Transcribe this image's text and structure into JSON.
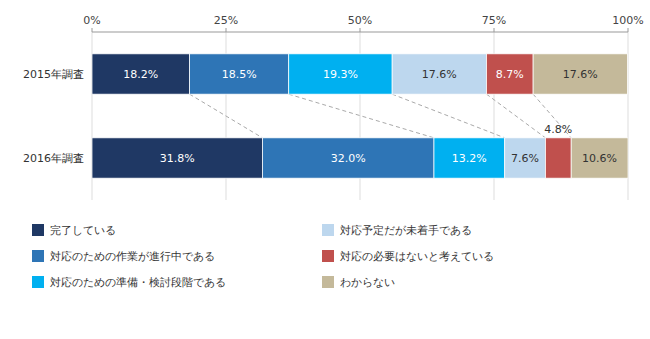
{
  "chart_data": {
    "type": "bar",
    "orientation": "horizontal",
    "stacked": true,
    "data_labels": true,
    "grid": true,
    "legend": "bottom",
    "categories": [
      "2015年調査",
      "2016年調査"
    ],
    "series": [
      {
        "name": "完了している",
        "color": "#1f3864",
        "values": [
          18.2,
          31.8
        ],
        "value_labels": [
          "18.2%",
          "31.8%"
        ]
      },
      {
        "name": "対応のための作業が進行中である",
        "color": "#2e75b6",
        "values": [
          18.5,
          32.0
        ],
        "value_labels": [
          "18.5%",
          "32.0%"
        ]
      },
      {
        "name": "対応のための準備・検討段階である",
        "color": "#00b0f0",
        "values": [
          19.3,
          13.2
        ],
        "value_labels": [
          "19.3%",
          "13.2%"
        ]
      },
      {
        "name": "対応予定だが未着手である",
        "color": "#bdd7ee",
        "values": [
          17.6,
          7.6
        ],
        "value_labels": [
          "17.6%",
          "7.6%"
        ]
      },
      {
        "name": "対応の必要はないと考えている",
        "color": "#c0504d",
        "values": [
          8.7,
          4.8
        ],
        "value_labels": [
          "8.7%",
          "4.8%"
        ]
      },
      {
        "name": "わからない",
        "color": "#c4b99a",
        "values": [
          17.6,
          10.6
        ],
        "value_labels": [
          "17.6%",
          "10.6%"
        ]
      }
    ],
    "xlim": [
      0,
      100
    ],
    "xticks": [
      {
        "value": 0,
        "label": "0%"
      },
      {
        "value": 25,
        "label": "25%"
      },
      {
        "value": 50,
        "label": "50%"
      },
      {
        "value": 75,
        "label": "75%"
      },
      {
        "value": 100,
        "label": "100%"
      }
    ]
  }
}
